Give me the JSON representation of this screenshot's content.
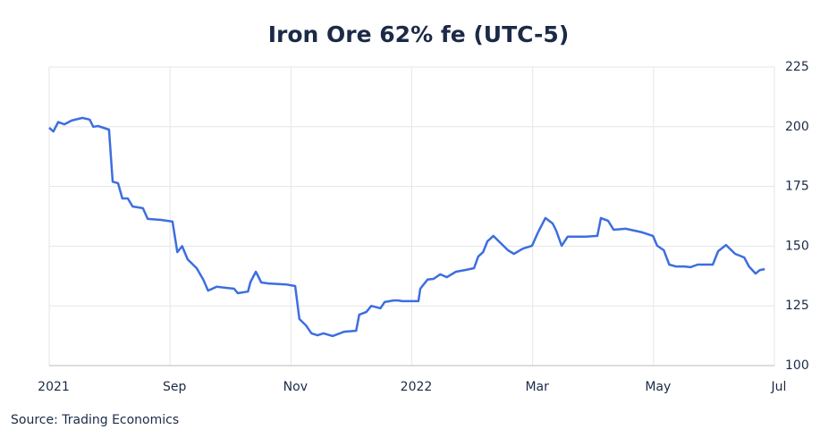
{
  "chart_data": {
    "type": "line",
    "title": "Iron Ore 62% fe (UTC-5)",
    "source": "Source: Trading Economics",
    "x": [
      0,
      0.07,
      0.15,
      0.25,
      0.37,
      0.55,
      0.67,
      0.73,
      0.81,
      0.99,
      1.05,
      1.14,
      1.21,
      1.3,
      1.38,
      1.55,
      1.63,
      1.85,
      2.04,
      2.12,
      2.2,
      2.29,
      2.44,
      2.55,
      2.63,
      2.77,
      3.06,
      3.12,
      3.29,
      3.33,
      3.42,
      3.51,
      3.63,
      3.92,
      4.07,
      4.14,
      4.25,
      4.34,
      4.44,
      4.54,
      4.69,
      4.88,
      5.08,
      5.13,
      5.25,
      5.33,
      5.48,
      5.55,
      5.7,
      5.77,
      5.84,
      6.11,
      6.14,
      6.26,
      6.36,
      6.47,
      6.58,
      6.73,
      6.88,
      7.03,
      7.1,
      7.18,
      7.25,
      7.35,
      7.47,
      7.59,
      7.69,
      7.84,
      7.99,
      8.09,
      8.21,
      8.33,
      8.39,
      8.48,
      8.58,
      8.88,
      9.07,
      9.13,
      9.25,
      9.34,
      9.54,
      9.81,
      9.99,
      10.06,
      10.17,
      10.26,
      10.37,
      10.51,
      10.61,
      10.73,
      10.98,
      11.07,
      11.2,
      11.35,
      11.5,
      11.58,
      11.69,
      11.76,
      11.84
    ],
    "series": [
      {
        "name": "Iron Ore 62% fe",
        "color": "#3d6ee0",
        "values": [
          199.6,
          198,
          202,
          201,
          202.6,
          203.7,
          203,
          200,
          200.3,
          198.8,
          177,
          176.4,
          170,
          170,
          166.6,
          165.9,
          161.4,
          161,
          160.3,
          147.5,
          150,
          144.5,
          140.8,
          136,
          131.4,
          133,
          132.2,
          130.3,
          131,
          135,
          139.3,
          134.8,
          134.4,
          134,
          133.3,
          119.5,
          116.8,
          113.5,
          112.7,
          113.5,
          112.4,
          114.2,
          114.6,
          121.3,
          122.5,
          125,
          124,
          126.6,
          127.3,
          127.3,
          127,
          127,
          132.2,
          136,
          136.3,
          138.2,
          137,
          139.3,
          140,
          140.8,
          145.7,
          147.5,
          152,
          154.3,
          151.3,
          148.3,
          146.8,
          149,
          150.2,
          155.8,
          161.8,
          159.5,
          156.5,
          150.2,
          154,
          154,
          154.3,
          161.8,
          160.6,
          156.9,
          157.3,
          155.8,
          154.3,
          150.2,
          148.3,
          142.3,
          141.5,
          141.5,
          141.2,
          142.3,
          142.3,
          147.9,
          150.5,
          146.8,
          145.3,
          141.5,
          138.5,
          140,
          140.4
        ]
      }
    ],
    "xlim": [
      0,
      12
    ],
    "xticks": [
      {
        "value": 0,
        "label": "2021"
      },
      {
        "value": 2,
        "label": "Sep"
      },
      {
        "value": 4,
        "label": "Nov"
      },
      {
        "value": 6,
        "label": "2022"
      },
      {
        "value": 8,
        "label": "Mar"
      },
      {
        "value": 10,
        "label": "May"
      },
      {
        "value": 12,
        "label": "Jul"
      }
    ],
    "ylim": [
      100,
      225
    ],
    "yticks": [
      100,
      125,
      150,
      175,
      200,
      225
    ],
    "grid": true
  }
}
